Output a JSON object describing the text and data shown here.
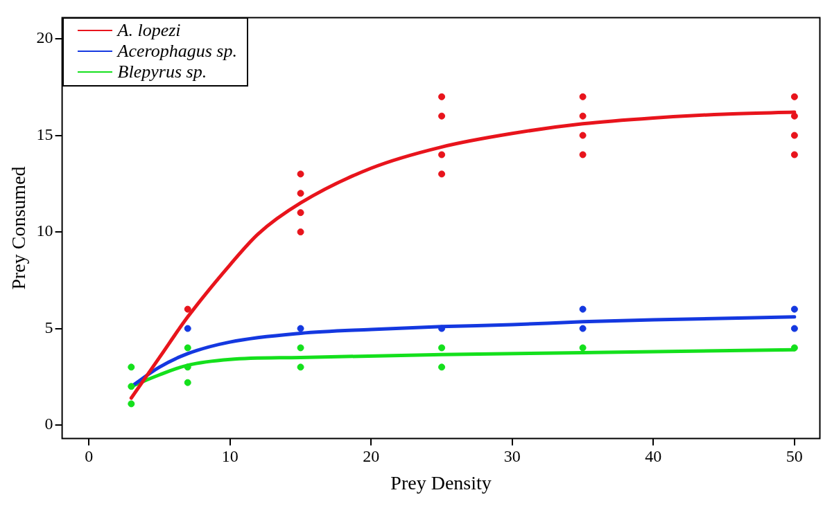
{
  "chart_data": {
    "type": "line",
    "xlabel": "Prey Density",
    "ylabel": "Prey Consumed",
    "xlim": [
      -1.9,
      51.8
    ],
    "ylim": [
      -0.7,
      21.1
    ],
    "xticks": [
      0,
      10,
      20,
      30,
      40,
      50
    ],
    "yticks": [
      0,
      5,
      10,
      15,
      20
    ],
    "grid": false,
    "legend": "top left",
    "series": [
      {
        "type": "scatter",
        "marker": "circle",
        "color": "#e8141c",
        "x": [
          7,
          15,
          15,
          15,
          15,
          25,
          25,
          25,
          25,
          35,
          35,
          35,
          35,
          50,
          50,
          50,
          50
        ],
        "values": [
          6,
          13,
          12,
          11,
          10,
          17,
          16,
          14,
          13,
          17,
          16,
          15,
          14,
          17,
          16,
          15,
          14
        ]
      },
      {
        "type": "scatter",
        "marker": "circle",
        "color": "#1438e0",
        "x": [
          7,
          15,
          25,
          35,
          35,
          50,
          50
        ],
        "values": [
          5,
          5,
          5,
          6,
          5,
          6,
          5
        ]
      },
      {
        "type": "scatter",
        "marker": "circle",
        "color": "#14e01c",
        "x": [
          3,
          3,
          3,
          7,
          7,
          7,
          15,
          15,
          25,
          25,
          35,
          50
        ],
        "values": [
          3,
          2,
          1.1,
          4,
          3,
          2.2,
          4,
          3,
          4,
          3,
          4,
          4
        ]
      },
      {
        "name": "A. lopezi",
        "marker": "none",
        "color": "#e8141c",
        "line_style": "solid",
        "x": [
          3,
          5,
          7,
          10,
          12,
          15,
          20,
          25,
          30,
          35,
          40,
          45,
          50
        ],
        "values": [
          1.4,
          3.5,
          5.6,
          8.3,
          9.9,
          11.5,
          13.3,
          14.4,
          15.1,
          15.6,
          15.9,
          16.1,
          16.2
        ]
      },
      {
        "name": "Acerophagus sp.",
        "marker": "none",
        "color": "#1438e0",
        "line_style": "solid",
        "x": [
          3,
          5,
          7,
          10,
          15,
          20,
          25,
          30,
          35,
          40,
          50
        ],
        "values": [
          2.0,
          3.0,
          3.7,
          4.3,
          4.75,
          4.95,
          5.1,
          5.2,
          5.35,
          5.45,
          5.6
        ]
      },
      {
        "name": "Blepyrus sp.",
        "marker": "none",
        "color": "#14e01c",
        "line_style": "solid",
        "x": [
          3,
          5,
          7,
          10,
          15,
          25,
          35,
          50
        ],
        "values": [
          2.0,
          2.6,
          3.1,
          3.4,
          3.5,
          3.65,
          3.75,
          3.9
        ]
      }
    ]
  }
}
